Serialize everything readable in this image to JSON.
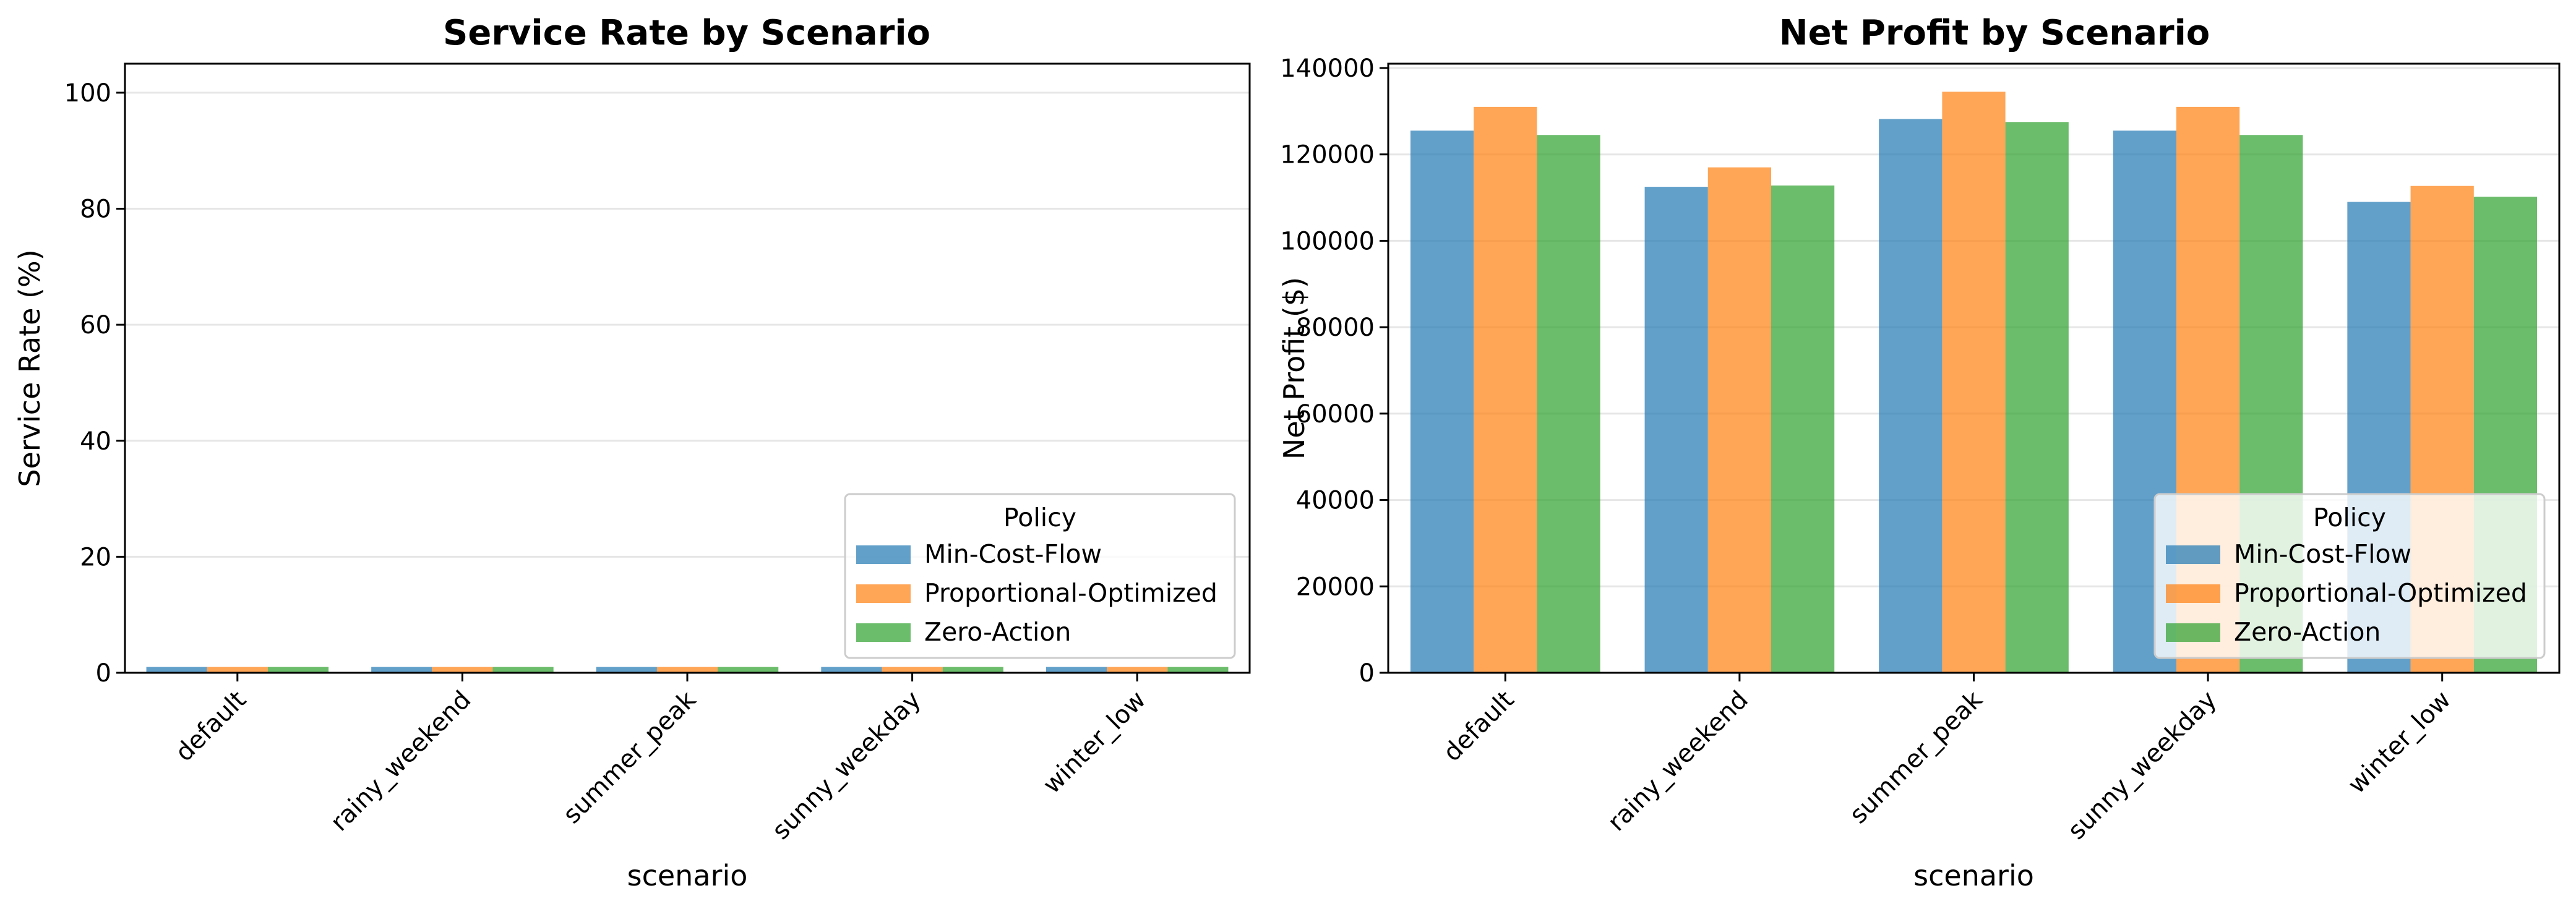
{
  "chart_data": [
    {
      "type": "bar",
      "title": "Service Rate by Scenario",
      "xlabel": "scenario",
      "ylabel": "Service Rate (%)",
      "categories": [
        "default",
        "rainy_weekend",
        "summer_peak",
        "sunny_weekday",
        "winter_low"
      ],
      "series": [
        {
          "name": "Min-Cost-Flow",
          "values": [
            1.0,
            1.0,
            1.0,
            1.0,
            1.0
          ]
        },
        {
          "name": "Proportional-Optimized",
          "values": [
            1.0,
            1.0,
            1.0,
            1.0,
            1.0
          ]
        },
        {
          "name": "Zero-Action",
          "values": [
            1.0,
            1.0,
            1.0,
            1.0,
            1.0
          ]
        }
      ],
      "ylim": [
        0,
        105
      ],
      "yticks": [
        0,
        20,
        40,
        60,
        80,
        100
      ],
      "grid": "horizontal",
      "legend": {
        "title": "Policy",
        "placement": "lower-right"
      }
    },
    {
      "type": "bar",
      "title": "Net Profit by Scenario",
      "xlabel": "scenario",
      "ylabel": "Net Profit ($)",
      "categories": [
        "default",
        "rainy_weekend",
        "summer_peak",
        "sunny_weekday",
        "winter_low"
      ],
      "series": [
        {
          "name": "Min-Cost-Flow",
          "values": [
            125500,
            112500,
            128200,
            125500,
            109000
          ]
        },
        {
          "name": "Proportional-Optimized",
          "values": [
            131000,
            117000,
            134500,
            131000,
            112700
          ]
        },
        {
          "name": "Zero-Action",
          "values": [
            124500,
            112800,
            127500,
            124500,
            110200
          ]
        }
      ],
      "ylim": [
        0,
        141000
      ],
      "yticks": [
        0,
        20000,
        40000,
        60000,
        80000,
        100000,
        120000,
        140000
      ],
      "grid": "horizontal",
      "legend": {
        "title": "Policy",
        "placement": "lower-right"
      }
    }
  ],
  "colors": {
    "Min-Cost-Flow": "#1f77b4",
    "Proportional-Optimized": "#ff7f0e",
    "Zero-Action": "#2ca02c"
  }
}
